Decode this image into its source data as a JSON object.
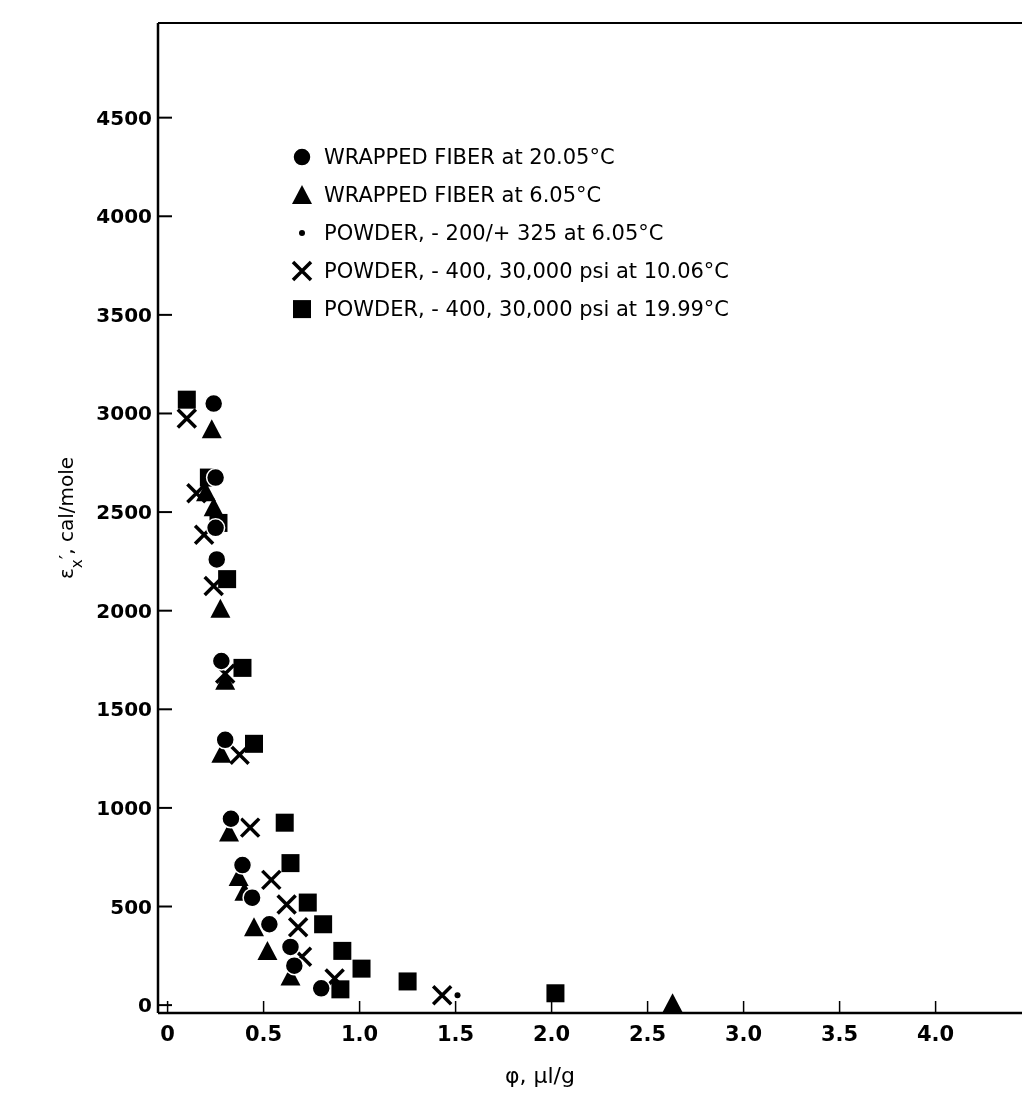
{
  "chart_data": {
    "type": "scatter",
    "xlabel": "φ, μl/g",
    "ylabel": "ε$_{x}$′, cal/mole",
    "xlim": [
      -0.05,
      4.45
    ],
    "ylim": [
      -40,
      4980
    ],
    "xticks": [
      0,
      0.5,
      {
        "value": 1,
        "label": "1.0"
      },
      1.5,
      {
        "value": 2,
        "label": "2.0"
      },
      2.5,
      {
        "value": 3,
        "label": "3.0"
      },
      3.5,
      {
        "value": 4,
        "label": "4.0"
      }
    ],
    "yticks": [
      0,
      500,
      1000,
      1500,
      2000,
      2500,
      3000,
      3500,
      4000,
      4500
    ],
    "grid": false,
    "legend": "top left",
    "series": [
      {
        "name": "WRAPPED FIBER at 20.05°C",
        "color": "#000000",
        "marker": "circle",
        "x": [
          0.24,
          0.25,
          0.25,
          0.256,
          0.28,
          0.3,
          0.33,
          0.39,
          0.44,
          0.53,
          0.64,
          0.66,
          0.8
        ],
        "values": [
          3050,
          2675,
          2420,
          2260,
          1745,
          1345,
          945,
          710,
          545,
          410,
          295,
          200,
          85
        ]
      },
      {
        "name": "WRAPPED FIBER at 6.05°C",
        "color": "#000000",
        "marker": "triangle",
        "x": [
          0.23,
          0.2,
          0.24,
          0.275,
          0.3,
          0.28,
          0.32,
          0.37,
          0.4,
          0.45,
          0.52,
          0.64,
          2.63
        ],
        "values": [
          2920,
          2600,
          2525,
          2010,
          1645,
          1275,
          875,
          650,
          575,
          395,
          275,
          145,
          10
        ]
      },
      {
        "name": "POWDER, - 200/+ 325 at 6.05°C",
        "color": "#000000",
        "marker": "dot",
        "x": [
          1.51
        ],
        "values": [
          50
        ]
      },
      {
        "name": "POWDER, - 400, 30,000 psi at 10.06°C",
        "color": "#000000",
        "marker": "cross",
        "x": [
          0.1,
          0.15,
          0.19,
          0.24,
          0.3,
          0.375,
          0.43,
          0.54,
          0.62,
          0.68,
          0.7,
          0.87,
          1.43
        ],
        "values": [
          2975,
          2595,
          2385,
          2125,
          1680,
          1270,
          900,
          635,
          510,
          395,
          245,
          135,
          50
        ]
      },
      {
        "name": "POWDER, - 400, 30,000 psi at 19.99°C",
        "color": "#000000",
        "marker": "square",
        "x": [
          0.1,
          0.215,
          0.265,
          0.31,
          0.39,
          0.45,
          0.61,
          0.64,
          0.73,
          0.81,
          0.91,
          1.01,
          0.9,
          1.25,
          2.02
        ],
        "values": [
          3070,
          2675,
          2445,
          2160,
          1710,
          1325,
          925,
          720,
          520,
          410,
          275,
          185,
          80,
          120,
          60
        ]
      }
    ]
  }
}
